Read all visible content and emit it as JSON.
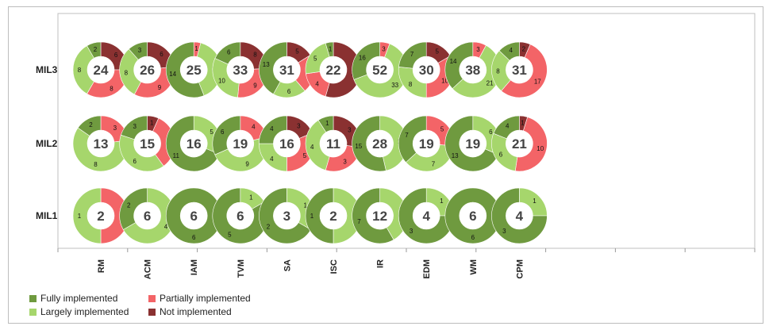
{
  "colors": {
    "fully": "#6f9a3f",
    "largely": "#a6d66c",
    "partially": "#f36467",
    "not": "#8a3131"
  },
  "legend": {
    "fully": "Fully implemented",
    "partially": "Partially implemented",
    "largely": "Largely implemented",
    "not": "Not implemented"
  },
  "chart_data": {
    "type": "pie",
    "subtype": "donut-grid",
    "levels": [
      "MIL3",
      "MIL2",
      "MIL1"
    ],
    "categories": [
      "RM",
      "ACM",
      "IAM",
      "TVM",
      "SA",
      "ISC",
      "IR",
      "EDM",
      "WM",
      "CPM"
    ],
    "status_order": [
      "fully",
      "largely",
      "partially",
      "not"
    ],
    "cells": {
      "MIL3": [
        {
          "total": 24,
          "fully": 2,
          "largely": 8,
          "partially": 8,
          "not": 6
        },
        {
          "total": 26,
          "fully": 3,
          "largely": 8,
          "partially": 9,
          "not": 6
        },
        {
          "total": 25,
          "fully": 14,
          "largely": 10,
          "partially": 1,
          "not": 0
        },
        {
          "total": 33,
          "fully": 6,
          "largely": 10,
          "partially": 9,
          "not": 8
        },
        {
          "total": 31,
          "fully": 13,
          "largely": 6,
          "partially": 7,
          "not": 5
        },
        {
          "total": 22,
          "fully": 1,
          "largely": 5,
          "partially": 4,
          "not": 12
        },
        {
          "total": 52,
          "fully": 16,
          "largely": 33,
          "partially": 3,
          "not": 0
        },
        {
          "total": 30,
          "fully": 7,
          "largely": 8,
          "partially": 10,
          "not": 5
        },
        {
          "total": 38,
          "fully": 14,
          "largely": 21,
          "partially": 3,
          "not": 0
        },
        {
          "total": 31,
          "fully": 4,
          "largely": 8,
          "partially": 17,
          "not": 2
        }
      ],
      "MIL2": [
        {
          "total": 13,
          "fully": 2,
          "largely": 8,
          "partially": 3,
          "not": 0
        },
        {
          "total": 15,
          "fully": 3,
          "largely": 6,
          "partially": 5,
          "not": 1
        },
        {
          "total": 16,
          "fully": 11,
          "largely": 5,
          "partially": 0,
          "not": 0
        },
        {
          "total": 19,
          "fully": 6,
          "largely": 9,
          "partially": 4,
          "not": 0
        },
        {
          "total": 16,
          "fully": 4,
          "largely": 4,
          "partially": 5,
          "not": 3
        },
        {
          "total": 11,
          "fully": 1,
          "largely": 4,
          "partially": 3,
          "not": 3
        },
        {
          "total": 28,
          "fully": 15,
          "largely": 13,
          "partially": 0,
          "not": 0
        },
        {
          "total": 19,
          "fully": 7,
          "largely": 7,
          "partially": 5,
          "not": 0
        },
        {
          "total": 19,
          "fully": 13,
          "largely": 6,
          "partially": 0,
          "not": 0
        },
        {
          "total": 21,
          "fully": 4,
          "largely": 6,
          "partially": 10,
          "not": 1
        }
      ],
      "MIL1": [
        {
          "total": 2,
          "fully": 0,
          "largely": 1,
          "partially": 1,
          "not": 0
        },
        {
          "total": 6,
          "fully": 2,
          "largely": 4,
          "partially": 0,
          "not": 0
        },
        {
          "total": 6,
          "fully": 6,
          "largely": 0,
          "partially": 0,
          "not": 0
        },
        {
          "total": 6,
          "fully": 5,
          "largely": 1,
          "partially": 0,
          "not": 0
        },
        {
          "total": 3,
          "fully": 2,
          "largely": 1,
          "partially": 0,
          "not": 0
        },
        {
          "total": 2,
          "fully": 1,
          "largely": 1,
          "partially": 0,
          "not": 0
        },
        {
          "total": 12,
          "fully": 7,
          "largely": 5,
          "partially": 0,
          "not": 0
        },
        {
          "total": 4,
          "fully": 3,
          "largely": 1,
          "partially": 0,
          "not": 0
        },
        {
          "total": 6,
          "fully": 6,
          "largely": 0,
          "partially": 0,
          "not": 0
        },
        {
          "total": 4,
          "fully": 3,
          "largely": 1,
          "partially": 0,
          "not": 0
        }
      ]
    },
    "legend_position": "bottom-left"
  }
}
